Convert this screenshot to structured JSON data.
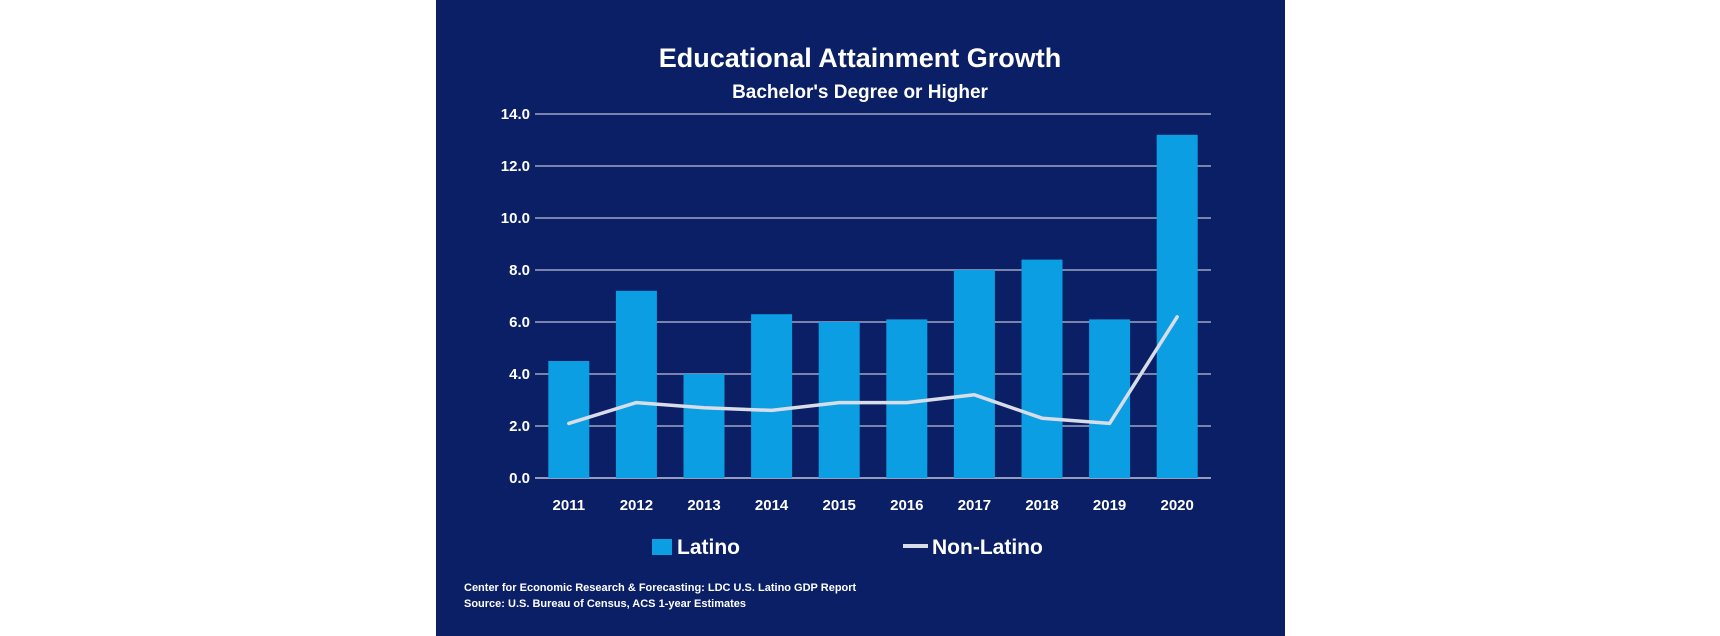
{
  "colors": {
    "background": "#0a1f66",
    "bar": "#0b9ee3",
    "line": "#d9dde8",
    "grid": "#ffffff",
    "text": "#ffffff"
  },
  "chart_data": {
    "type": "bar",
    "title": "Educational Attainment Growth",
    "subtitle": "Bachelor's Degree or Higher",
    "categories": [
      "2011",
      "2012",
      "2013",
      "2014",
      "2015",
      "2016",
      "2017",
      "2018",
      "2019",
      "2020"
    ],
    "series": [
      {
        "name": "Latino",
        "type": "bar",
        "values": [
          4.5,
          7.2,
          4.0,
          6.3,
          6.0,
          6.1,
          8.0,
          8.4,
          6.1,
          13.2
        ]
      },
      {
        "name": "Non-Latino",
        "type": "line",
        "values": [
          2.1,
          2.9,
          2.7,
          2.6,
          2.9,
          2.9,
          3.2,
          2.3,
          2.1,
          6.2
        ]
      }
    ],
    "ylim": [
      0,
      14
    ],
    "yticks": [
      "0.0",
      "2.0",
      "4.0",
      "6.0",
      "8.0",
      "10.0",
      "12.0",
      "14.0"
    ],
    "grid": true,
    "legend": "bottom-center",
    "xlabel": "",
    "ylabel": ""
  },
  "source": {
    "line1": "Center for Economic Research & Forecasting: LDC U.S. Latino GDP Report",
    "line2": "Source: U.S. Bureau of Census, ACS 1-year Estimates"
  }
}
